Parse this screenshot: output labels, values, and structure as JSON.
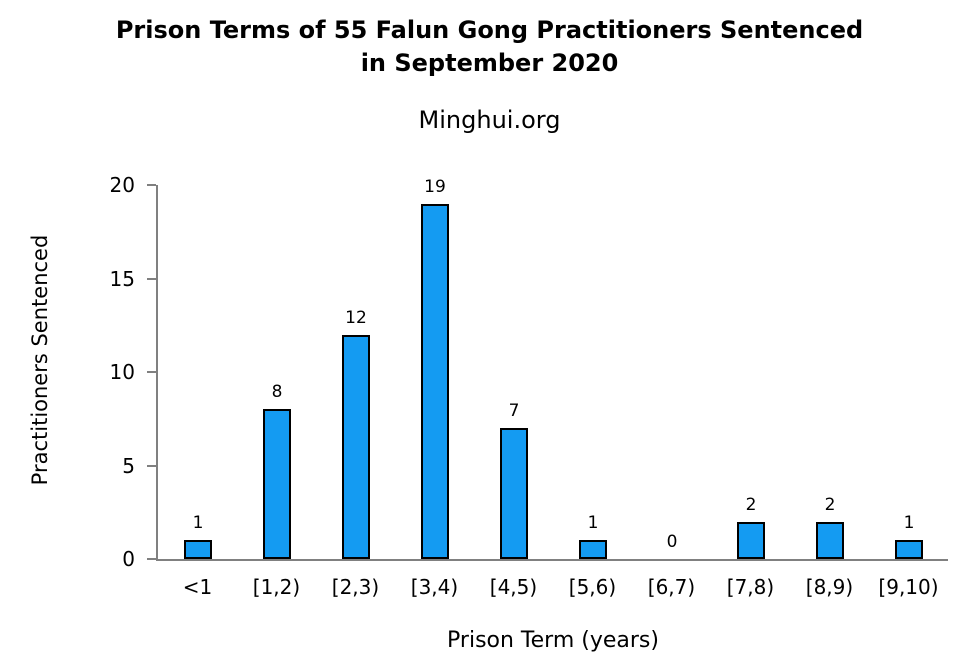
{
  "header": {
    "title_line1": "Prison Terms of 55 Falun Gong Practitioners Sentenced",
    "title_line2": "in September 2020",
    "subtitle": "Minghui.org"
  },
  "chart_data": {
    "type": "bar",
    "title": "Prison Terms of 55 Falun Gong Practitioners Sentenced in September 2020",
    "subtitle": "Minghui.org",
    "categories": [
      "<1",
      "[1,2)",
      "[2,3)",
      "[3,4)",
      "[4,5)",
      "[5,6)",
      "[6,7)",
      "[7,8)",
      "[8,9)",
      "[9,10)"
    ],
    "values": [
      1,
      8,
      12,
      19,
      7,
      1,
      0,
      2,
      2,
      1
    ],
    "data_labels": [
      1,
      8,
      12,
      19,
      7,
      1,
      0,
      2,
      2,
      1
    ],
    "xlabel": "Prison Term (years)",
    "ylabel": "Practitioners Sentenced",
    "yticks": [
      0,
      5,
      10,
      15,
      20
    ],
    "ylim": [
      0,
      20
    ],
    "grid": false,
    "legend": false,
    "colors": {
      "bar_fill": "#149BF2",
      "bar_border": "#000000",
      "axis": "#808080",
      "text": "#000000",
      "background": "#FFFFFF"
    }
  }
}
